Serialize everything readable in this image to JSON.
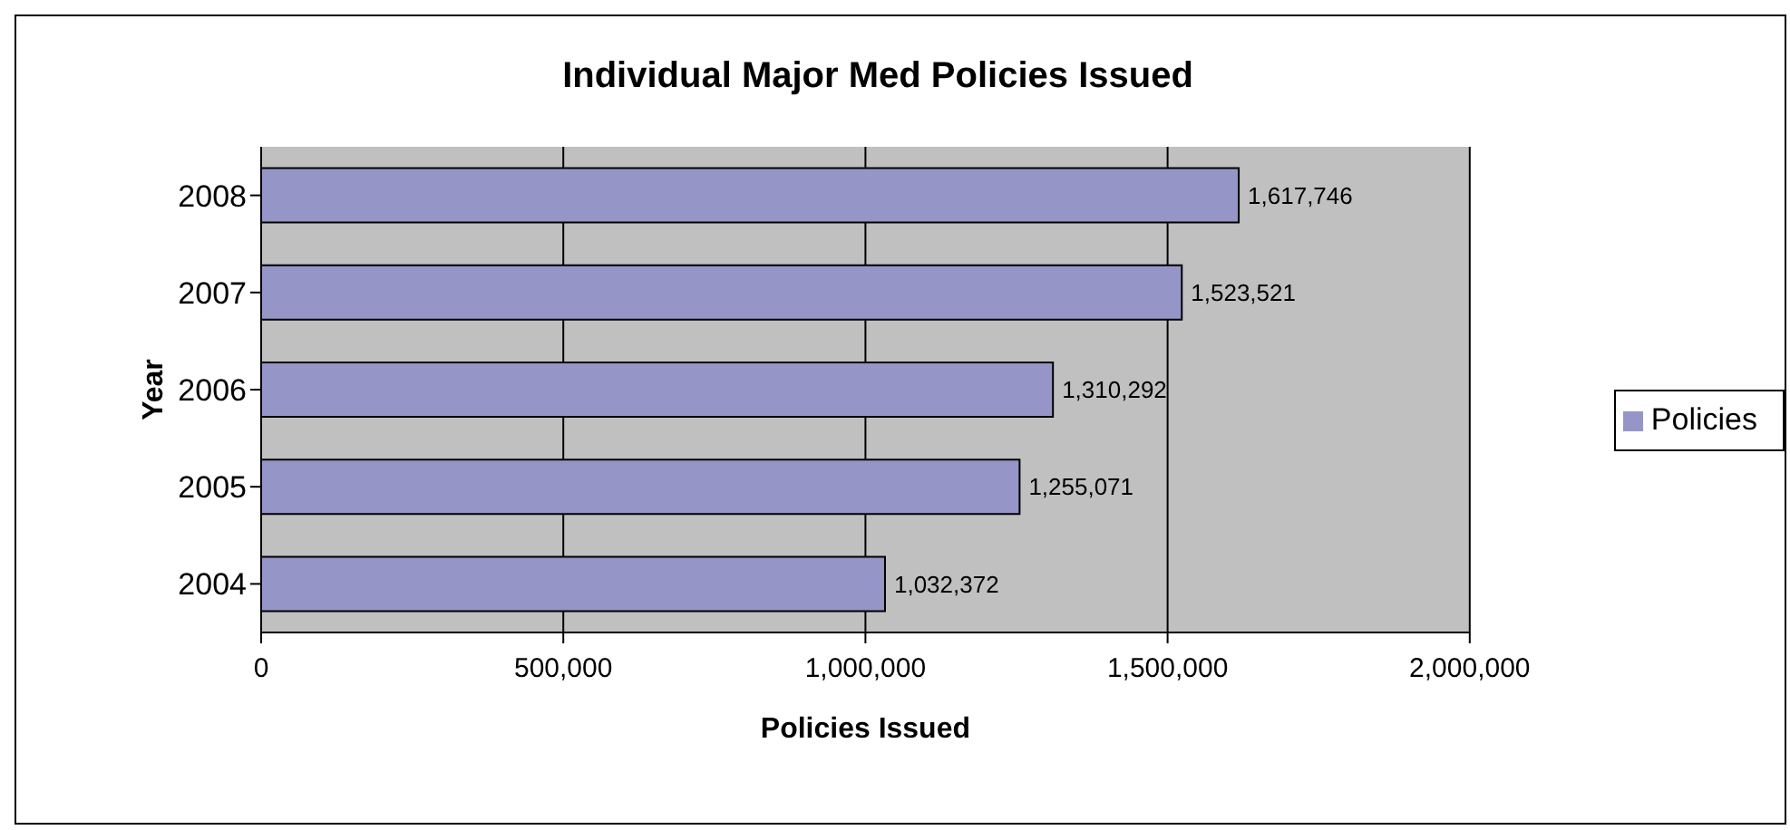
{
  "chart_data": {
    "type": "bar",
    "orientation": "horizontal",
    "title": "Individual Major Med Policies Issued",
    "xlabel": "Policies Issued",
    "ylabel": "Year",
    "categories": [
      "2008",
      "2007",
      "2006",
      "2005",
      "2004"
    ],
    "series": [
      {
        "name": "Policies",
        "color": "#9595c8",
        "values": [
          1617746,
          1523521,
          1310292,
          1255071,
          1032372
        ],
        "value_labels": [
          "1,617,746",
          "1,523,521",
          "1,310,292",
          "1,255,071",
          "1,032,372"
        ]
      }
    ],
    "xlim": [
      0,
      2000000
    ],
    "xticks": [
      {
        "value": 0,
        "label": "0"
      },
      {
        "value": 500000,
        "label": "500,000"
      },
      {
        "value": 1000000,
        "label": "1,000,000"
      },
      {
        "value": 1500000,
        "label": "1,500,000"
      },
      {
        "value": 2000000,
        "label": "2,000,000"
      }
    ],
    "grid": "x",
    "legend": "right"
  }
}
